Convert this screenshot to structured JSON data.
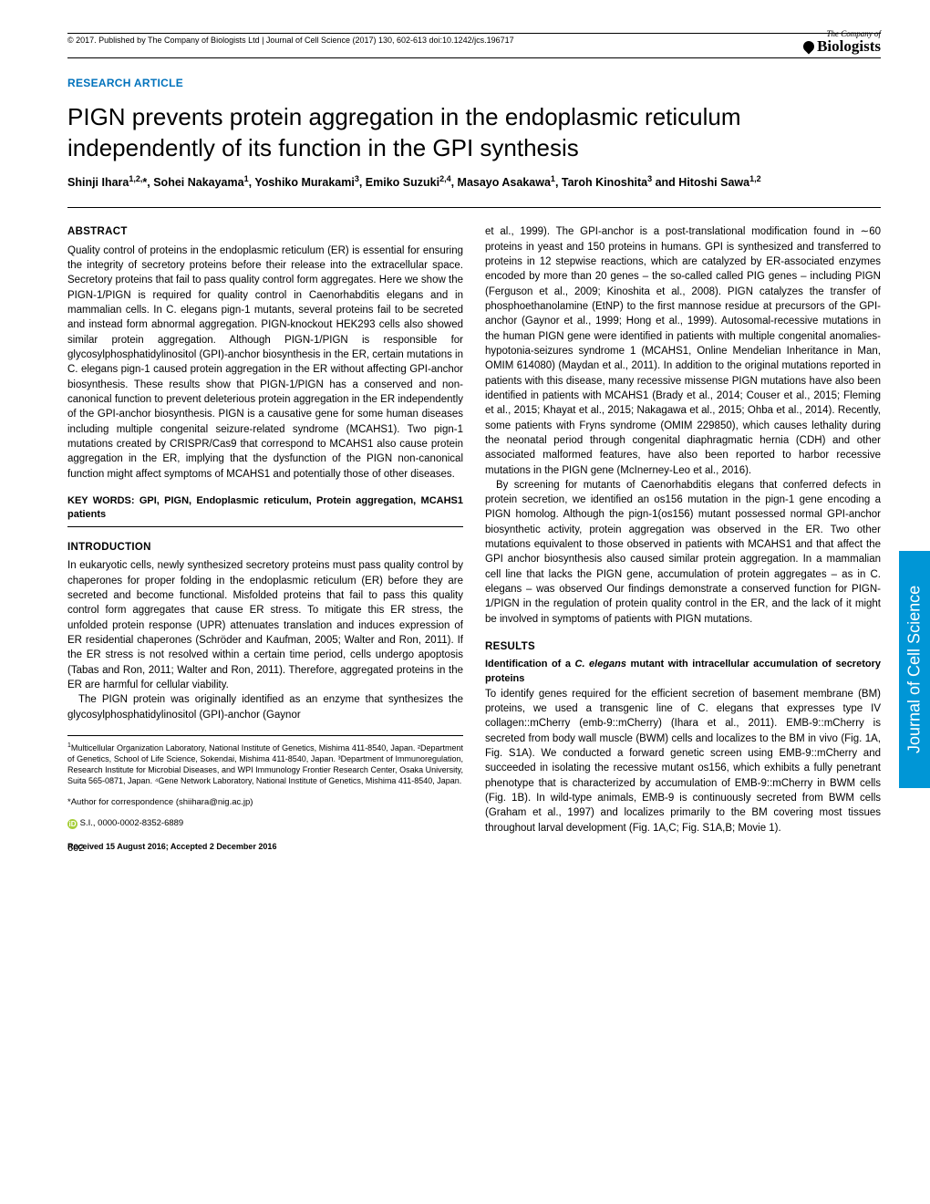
{
  "journal": {
    "copyright": "© 2017. Published by The Company of Biologists Ltd | Journal of Cell Science (2017) 130, 602-613 doi:10.1242/jcs.196717",
    "logo_company": "The Company of",
    "logo_name": "Biologists",
    "side_tab": "Journal of Cell Science"
  },
  "article": {
    "type": "RESEARCH ARTICLE",
    "title": "PIGN prevents protein aggregation in the endoplasmic reticulum independently of its function in the GPI synthesis",
    "authors_html": "Shinji Ihara<sup>1,2,</sup>*, Sohei Nakayama<sup>1</sup>, Yoshiko Murakami<sup>3</sup>, Emiko Suzuki<sup>2,4</sup>, Masayo Asakawa<sup>1</sup>, Taroh Kinoshita<sup>3</sup> and Hitoshi Sawa<sup>1,2</sup>"
  },
  "sections": {
    "abstract_h": "ABSTRACT",
    "abstract": "Quality control of proteins in the endoplasmic reticulum (ER) is essential for ensuring the integrity of secretory proteins before their release into the extracellular space. Secretory proteins that fail to pass quality control form aggregates. Here we show the PIGN-1/PIGN is required for quality control in Caenorhabditis elegans and in mammalian cells. In C. elegans pign-1 mutants, several proteins fail to be secreted and instead form abnormal aggregation. PIGN-knockout HEK293 cells also showed similar protein aggregation. Although PIGN-1/PIGN is responsible for glycosylphosphatidylinositol (GPI)-anchor biosynthesis in the ER, certain mutations in C. elegans pign-1 caused protein aggregation in the ER without affecting GPI-anchor biosynthesis. These results show that PIGN-1/PIGN has a conserved and non-canonical function to prevent deleterious protein aggregation in the ER independently of the GPI-anchor biosynthesis. PIGN is a causative gene for some human diseases including multiple congenital seizure-related syndrome (MCAHS1). Two pign-1 mutations created by CRISPR/Cas9 that correspond to MCAHS1 also cause protein aggregation in the ER, implying that the dysfunction of the PIGN non-canonical function might affect symptoms of MCAHS1 and potentially those of other diseases.",
    "keywords_label": "KEY WORDS: GPI, PIGN, Endoplasmic reticulum, Protein aggregation, MCAHS1 patients",
    "intro_h": "INTRODUCTION",
    "intro_p1": "In eukaryotic cells, newly synthesized secretory proteins must pass quality control by chaperones for proper folding in the endoplasmic reticulum (ER) before they are secreted and become functional. Misfolded proteins that fail to pass this quality control form aggregates that cause ER stress. To mitigate this ER stress, the unfolded protein response (UPR) attenuates translation and induces expression of ER residential chaperones (Schröder and Kaufman, 2005; Walter and Ron, 2011). If the ER stress is not resolved within a certain time period, cells undergo apoptosis (Tabas and Ron, 2011; Walter and Ron, 2011). Therefore, aggregated proteins in the ER are harmful for cellular viability.",
    "intro_p2": "The PIGN protein was originally identified as an enzyme that synthesizes the glycosylphosphatidylinositol (GPI)-anchor (Gaynor",
    "col2_p1": "et al., 1999). The GPI-anchor is a post-translational modification found in ∼60 proteins in yeast and 150 proteins in humans. GPI is synthesized and transferred to proteins in 12 stepwise reactions, which are catalyzed by ER-associated enzymes encoded by more than 20 genes – the so-called called PIG genes – including PIGN (Ferguson et al., 2009; Kinoshita et al., 2008). PIGN catalyzes the transfer of phosphoethanolamine (EtNP) to the first mannose residue at precursors of the GPI-anchor (Gaynor et al., 1999; Hong et al., 1999). Autosomal-recessive mutations in the human PIGN gene were identified in patients with multiple congenital anomalies-hypotonia-seizures syndrome 1 (MCAHS1, Online Mendelian Inheritance in Man, OMIM 614080) (Maydan et al., 2011). In addition to the original mutations reported in patients with this disease, many recessive missense PIGN mutations have also been identified in patients with MCAHS1 (Brady et al., 2014; Couser et al., 2015; Fleming et al., 2015; Khayat et al., 2015; Nakagawa et al., 2015; Ohba et al., 2014). Recently, some patients with Fryns syndrome (OMIM 229850), which causes lethality during the neonatal period through congenital diaphragmatic hernia (CDH) and other associated malformed features, have also been reported to harbor recessive mutations in the PIGN gene (McInerney-Leo et al., 2016).",
    "col2_p2": "By screening for mutants of Caenorhabditis elegans that conferred defects in protein secretion, we identified an os156 mutation in the pign-1 gene encoding a PIGN homolog. Although the pign-1(os156) mutant possessed normal GPI-anchor biosynthetic activity, protein aggregation was observed in the ER. Two other mutations equivalent to those observed in patients with MCAHS1 and that affect the GPI anchor biosynthesis also caused similar protein aggregation. In a mammalian cell line that lacks the PIGN gene, accumulation of protein aggregates – as in C. elegans – was observed Our findings demonstrate a conserved function for PIGN-1/PIGN in the regulation of protein quality control in the ER, and the lack of it might be involved in symptoms of patients with PIGN mutations.",
    "results_h": "RESULTS",
    "results_sub": "Identification of a C. elegans mutant with intracellular accumulation of secretory proteins",
    "results_p1": "To identify genes required for the efficient secretion of basement membrane (BM) proteins, we used a transgenic line of C. elegans that expresses type IV collagen::mCherry (emb-9::mCherry) (Ihara et al., 2011). EMB-9::mCherry is secreted from body wall muscle (BWM) cells and localizes to the BM in vivo (Fig. 1A, Fig. S1A). We conducted a forward genetic screen using EMB-9::mCherry and succeeded in isolating the recessive mutant os156, which exhibits a fully penetrant phenotype that is characterized by accumulation of EMB-9::mCherry in BWM cells (Fig. 1B). In wild-type animals, EMB-9 is continuously secreted from BWM cells (Graham et al., 1997) and localizes primarily to the BM covering most tissues throughout larval development (Fig. 1A,C; Fig. S1A,B; Movie 1)."
  },
  "affiliations": {
    "text": "Multicellular Organization Laboratory, National Institute of Genetics, Mishima  411-8540, Japan. ²Department of Genetics, School of Life Science, Sokendai, Mishima 411-8540, Japan. ³Department of Immunoregulation, Research Institute for Microbial Diseases, and WPI Immunology Frontier Research Center, Osaka University, Suita 565-0871, Japan. ⁴Gene Network Laboratory, National Institute of Genetics, Mishima 411-8540, Japan.",
    "correspondence": "*Author for correspondence (shiihara@nig.ac.jp)",
    "orcid": "S.I., 0000-0002-8352-6889",
    "dates": "Received 15 August 2016; Accepted 2 December 2016"
  },
  "page_number": "602",
  "colors": {
    "primary_blue": "#0072bc",
    "side_tab_blue": "#0096d6",
    "orcid_green": "#a6ce39"
  }
}
